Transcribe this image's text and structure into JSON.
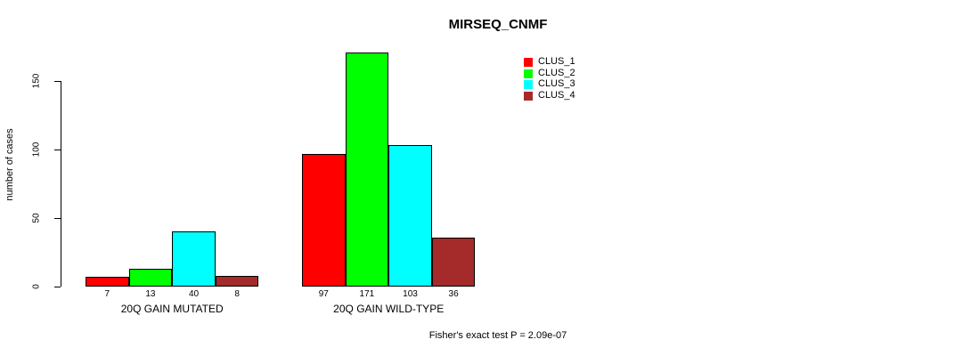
{
  "chart_data": {
    "type": "bar",
    "title": "MIRSEQ_CNMF",
    "ylabel": "number of cases",
    "xlabel": "",
    "ylim": [
      0,
      175
    ],
    "yticks": [
      0,
      50,
      100,
      150
    ],
    "grid": false,
    "legend_position": "top-right",
    "categories": [
      "20Q GAIN MUTATED",
      "20Q GAIN WILD-TYPE"
    ],
    "series": [
      {
        "name": "CLUS_1",
        "color": "#ff0000",
        "values": [
          7,
          97
        ]
      },
      {
        "name": "CLUS_2",
        "color": "#00ff00",
        "values": [
          13,
          171
        ]
      },
      {
        "name": "CLUS_3",
        "color": "#00ffff",
        "values": [
          40,
          103
        ]
      },
      {
        "name": "CLUS_4",
        "color": "#a52a2a",
        "values": [
          8,
          36
        ]
      }
    ],
    "bar_value_labels_visible": true,
    "annotation": "Fisher's exact test P = 2.09e-07"
  }
}
